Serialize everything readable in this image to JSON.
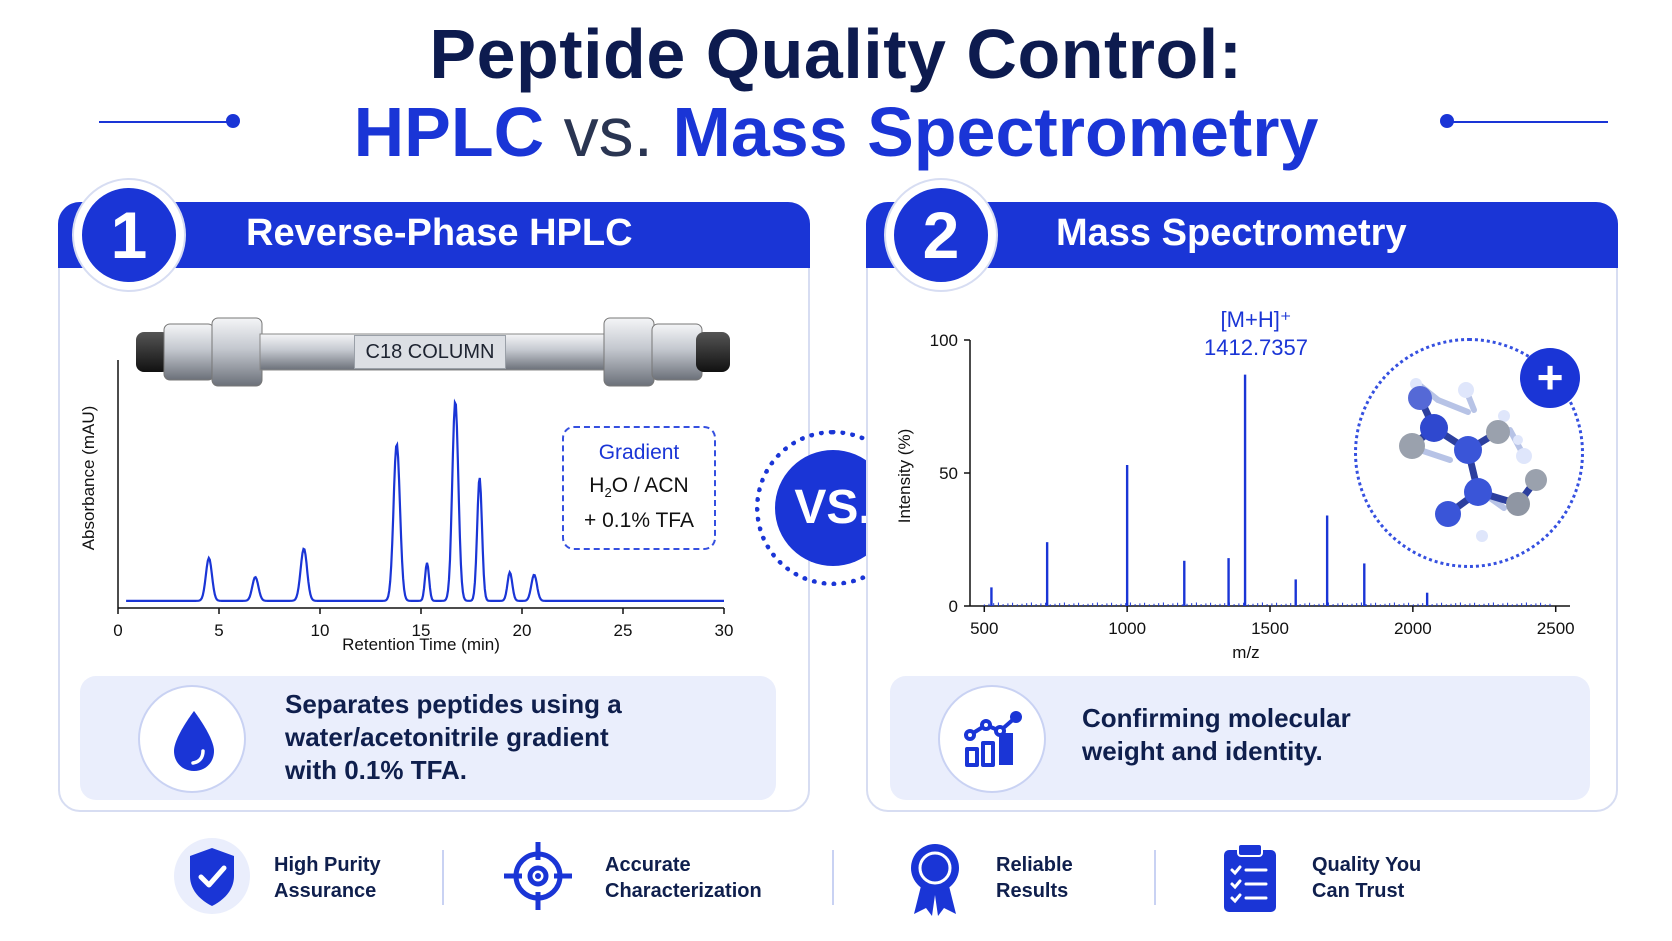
{
  "title": {
    "line1": "Peptide Quality Control:",
    "line2_left": "HPLC",
    "line2_vs": "vs.",
    "line2_right": "Mass Spectrometry"
  },
  "panels": [
    {
      "number": "1",
      "title": "Reverse-Phase HPLC"
    },
    {
      "number": "2",
      "title": "Mass Spectrometry"
    }
  ],
  "hplc": {
    "column_label": "C18 COLUMN",
    "gradient": {
      "title": "Gradient",
      "line1_a": "H",
      "line1_sub": "2",
      "line1_b": "O / ACN",
      "line2": "+ 0.1% TFA"
    },
    "description": "Separates peptides using a water/acetonitrile gradient with 0.1% TFA.",
    "description_lines": [
      "Separates peptides using a",
      "water/acetonitrile gradient",
      "with 0.1% TFA."
    ]
  },
  "ms": {
    "peak_label": "[M+H]⁺",
    "peak_value": "1412.7357",
    "description_lines": [
      "Confirming molecular",
      "weight and identity."
    ]
  },
  "vs_badge": "VS.",
  "chart_data": [
    {
      "type": "line",
      "xlabel": "Retention Time (min)",
      "ylabel": "Absorbance (mAU)",
      "xlim": [
        0,
        30
      ],
      "ylim": [
        0,
        100
      ],
      "xticks": [
        0,
        5,
        10,
        15,
        20,
        25,
        30
      ],
      "baseline": 3,
      "peaks": [
        {
          "x": 4.5,
          "y": 18,
          "w": 0.15
        },
        {
          "x": 6.8,
          "y": 10,
          "w": 0.15
        },
        {
          "x": 9.2,
          "y": 22,
          "w": 0.16
        },
        {
          "x": 13.8,
          "y": 66,
          "w": 0.16
        },
        {
          "x": 15.3,
          "y": 16,
          "w": 0.1
        },
        {
          "x": 16.7,
          "y": 84,
          "w": 0.15
        },
        {
          "x": 17.9,
          "y": 52,
          "w": 0.12
        },
        {
          "x": 19.4,
          "y": 12,
          "w": 0.12
        },
        {
          "x": 20.6,
          "y": 11,
          "w": 0.14
        }
      ],
      "grid": false
    },
    {
      "type": "bar",
      "xlabel": "m/z",
      "ylabel": "Intensity (%)",
      "xlim": [
        450,
        2550
      ],
      "ylim": [
        0,
        100
      ],
      "xticks": [
        500,
        1000,
        1500,
        2000,
        2500
      ],
      "yticks": [
        0,
        50,
        100
      ],
      "peaks": [
        {
          "x": 525,
          "y": 7
        },
        {
          "x": 720,
          "y": 24
        },
        {
          "x": 1000,
          "y": 53
        },
        {
          "x": 1200,
          "y": 17
        },
        {
          "x": 1355,
          "y": 18
        },
        {
          "x": 1412.7357,
          "y": 87
        },
        {
          "x": 1590,
          "y": 10
        },
        {
          "x": 1700,
          "y": 34
        },
        {
          "x": 1830,
          "y": 16
        },
        {
          "x": 2050,
          "y": 5
        }
      ],
      "grid": false
    }
  ],
  "footer": [
    {
      "line1": "High Purity",
      "line2": "Assurance",
      "icon": "shield-check-icon"
    },
    {
      "line1": "Accurate",
      "line2": "Characterization",
      "icon": "target-icon"
    },
    {
      "line1": "Reliable",
      "line2": "Results",
      "icon": "award-ribbon-icon"
    },
    {
      "line1": "Quality You",
      "line2": "Can Trust",
      "icon": "clipboard-checklist-icon"
    }
  ],
  "colors": {
    "accent": "#1a35d6",
    "navy": "#0d1b4f",
    "panel_tint": "#eaeefc"
  }
}
